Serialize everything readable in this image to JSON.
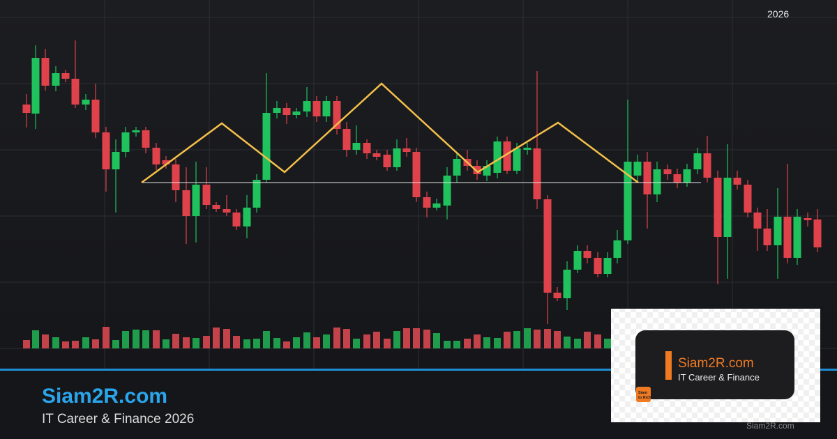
{
  "header": {
    "year": "2026"
  },
  "brand": {
    "title": "Siam2R.com",
    "subtitle": "IT Career & Finance 2026"
  },
  "logo": {
    "title": "Siam2R.com",
    "tagline": "IT Career & Finance",
    "badge": [
      "Siam",
      "to Rich"
    ]
  },
  "watermark": "Siam2R.com"
}
